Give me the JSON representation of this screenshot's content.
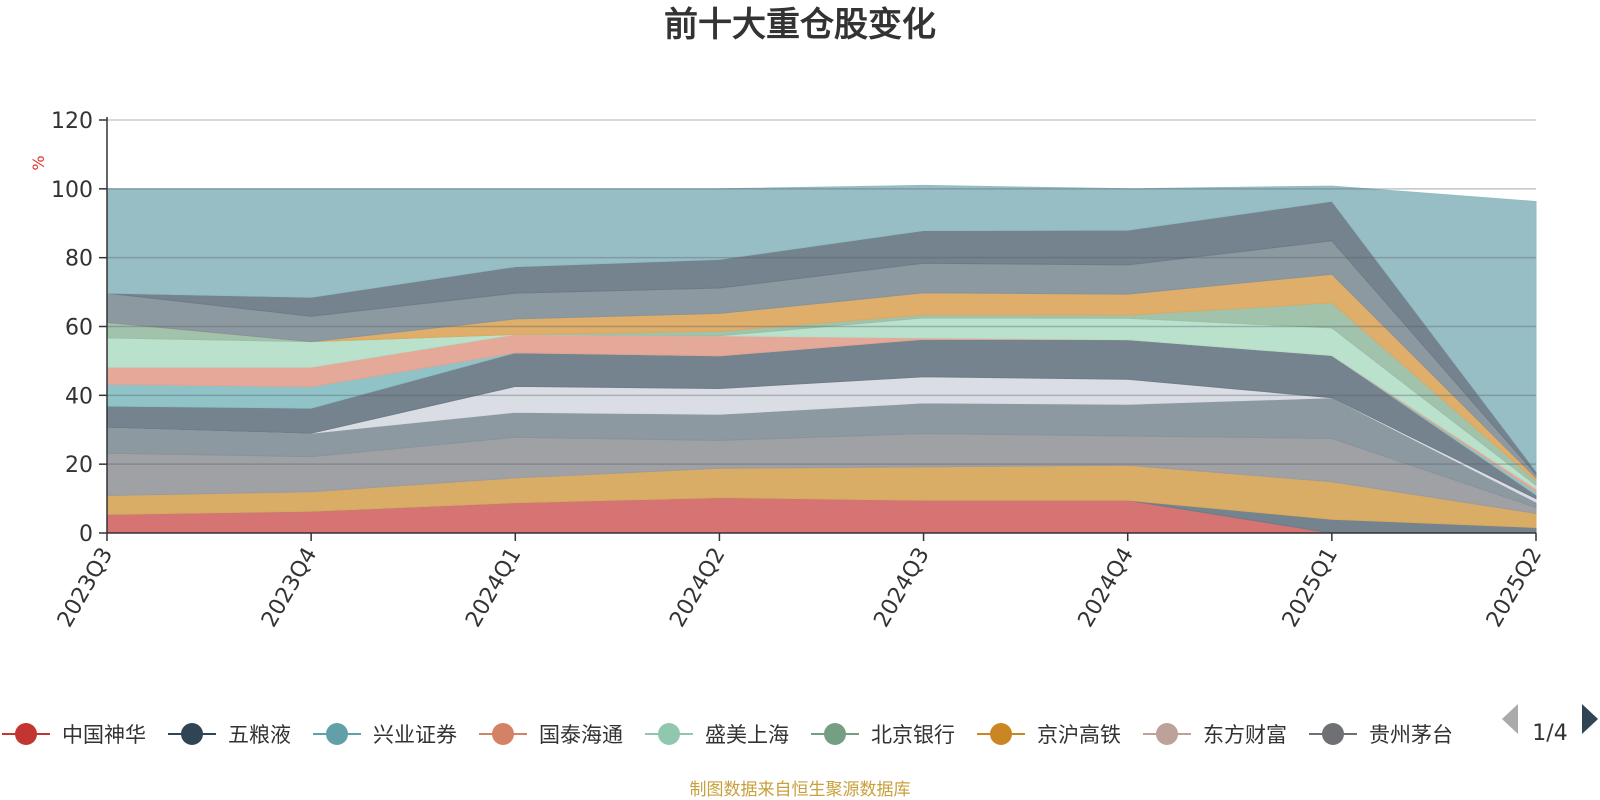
{
  "chart_data": {
    "type": "area",
    "stacked": true,
    "title": "前十大重仓股变化",
    "ylabel": "%",
    "ylim": [
      0,
      120
    ],
    "yticks": [
      0,
      20,
      40,
      60,
      80,
      100,
      120
    ],
    "grid": true,
    "categories": [
      "2023Q3",
      "2023Q4",
      "2024Q1",
      "2024Q2",
      "2024Q3",
      "2024Q4",
      "2025Q1",
      "2025Q2"
    ],
    "series": [
      {
        "color": "#d46b6b",
        "values": [
          5.4,
          6.3,
          8.8,
          10.3,
          9.5,
          9.5,
          0,
          0
        ]
      },
      {
        "color": "#6e7c88",
        "values": [
          0,
          0,
          0,
          0,
          0,
          0,
          4,
          1.6
        ]
      },
      {
        "color": "#d8a95e",
        "values": [
          5.5,
          5.7,
          7.2,
          8.5,
          9.7,
          10.2,
          10.9,
          4.1
        ]
      },
      {
        "color": "#9a9ca0",
        "values": [
          12.3,
          10.2,
          11.8,
          8.1,
          9.7,
          8.5,
          12.6,
          1.7
        ]
      },
      {
        "color": "#87949b",
        "values": [
          7.5,
          6.8,
          7.3,
          7.6,
          8.9,
          9.2,
          11.8,
          1.6
        ]
      },
      {
        "color": "#d8dbe3",
        "values": [
          0,
          0,
          7.5,
          7.5,
          7.6,
          7.3,
          0,
          1.0
        ]
      },
      {
        "color": "#6e7c88",
        "values": [
          6.2,
          7.3,
          9.8,
          9.5,
          10.9,
          11.5,
          12.3,
          1.1
        ]
      },
      {
        "color": "#8ac0c4",
        "values": [
          6.3,
          6.2,
          0,
          0,
          0,
          0,
          0,
          0.9
        ]
      },
      {
        "color": "#e3a492",
        "values": [
          5.0,
          5.7,
          5.3,
          5.8,
          0.4,
          0,
          0,
          0.9
        ]
      },
      {
        "color": "#b5dfc9",
        "values": [
          8.5,
          7.4,
          0,
          0,
          5.8,
          6.2,
          8.0,
          1.0
        ]
      },
      {
        "color": "#9cbfa6",
        "values": [
          4.5,
          0,
          0,
          1.3,
          0.9,
          0.9,
          7.3,
          1.2
        ]
      },
      {
        "color": "#dcaa62",
        "values": [
          0,
          0,
          4.5,
          5.2,
          6.4,
          6.1,
          8.3,
          0.9
        ]
      },
      {
        "color": "#87949b",
        "values": [
          8.5,
          7.4,
          7.5,
          7.4,
          8.6,
          8.5,
          9.7,
          1.0
        ]
      },
      {
        "color": "#6e7c88",
        "values": [
          0,
          5.5,
          7.7,
          8.3,
          9.5,
          10.1,
          11.5,
          1.0
        ]
      },
      {
        "color": "#91bbc2",
        "values": [
          30.3,
          31.5,
          22.6,
          20.5,
          13.1,
          12.0,
          4.4,
          78.3
        ]
      }
    ]
  },
  "legend": {
    "items": [
      {
        "label": "中国神华",
        "color": "#c23531",
        "line_color": "#c23531"
      },
      {
        "label": "五粮液",
        "color": "#2f4554",
        "line_color": "#2f4554"
      },
      {
        "label": "兴业证券",
        "color": "#61a0a8",
        "line_color": "#61a0a8"
      },
      {
        "label": "国泰海通",
        "color": "#d48265",
        "line_color": "#d48265"
      },
      {
        "label": "盛美上海",
        "color": "#91c7ae",
        "line_color": "#91c7ae"
      },
      {
        "label": "北京银行",
        "color": "#749f83",
        "line_color": "#749f83"
      },
      {
        "label": "京沪高铁",
        "color": "#ca8622",
        "line_color": "#ca8622"
      },
      {
        "label": "东方财富",
        "color": "#bda29a",
        "line_color": "#bda29a"
      },
      {
        "label": "贵州茅台",
        "color": "#6e7074",
        "line_color": "#6e7074"
      }
    ],
    "pager": "1/4"
  },
  "source": "制图数据来自恒生聚源数据库"
}
